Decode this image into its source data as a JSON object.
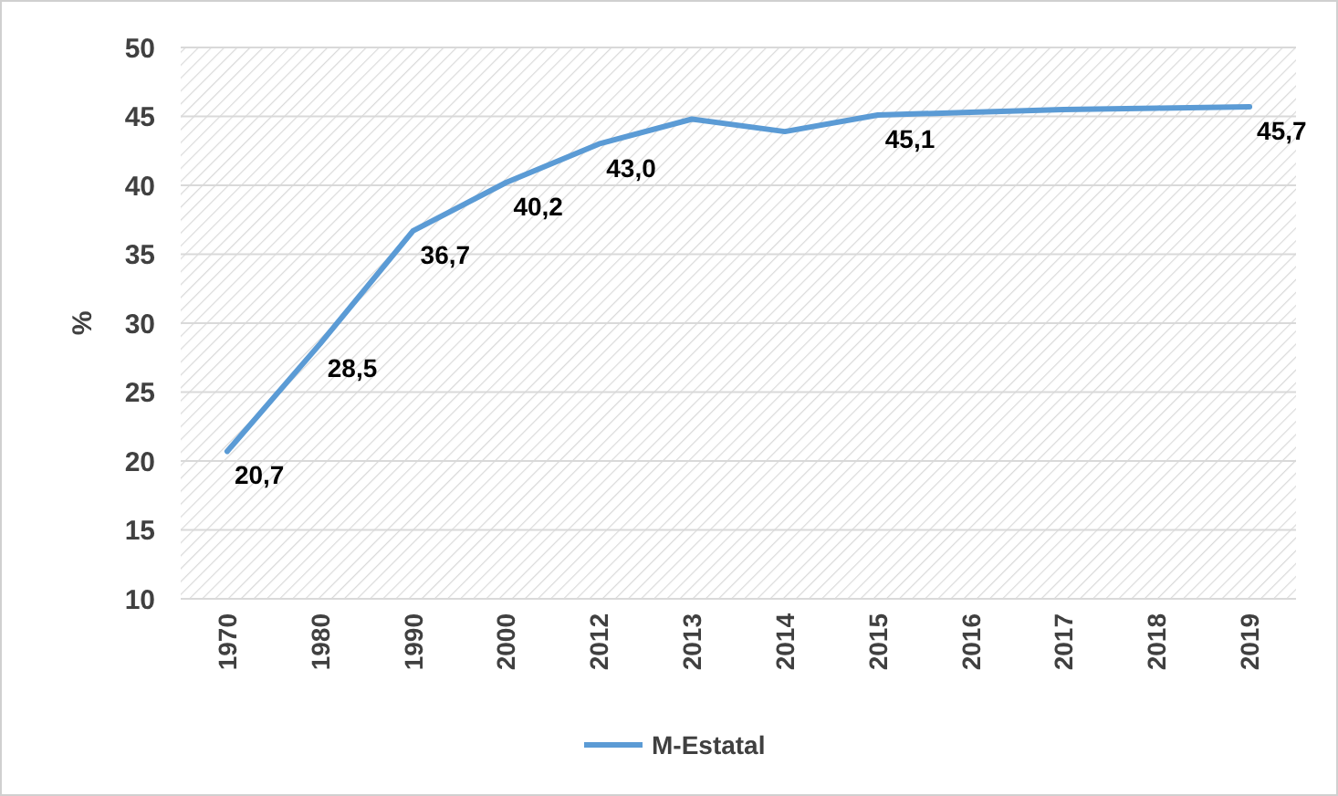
{
  "chart_data": {
    "type": "line",
    "ylabel": "%",
    "categories": [
      "1970",
      "1980",
      "1990",
      "2000",
      "2012",
      "2013",
      "2014",
      "2015",
      "2016",
      "2017",
      "2018",
      "2019"
    ],
    "series": [
      {
        "name": "M-Estatal",
        "color": "#5b9bd5",
        "values": [
          20.7,
          28.5,
          36.7,
          40.2,
          43.0,
          44.8,
          43.9,
          45.1,
          45.3,
          45.5,
          45.6,
          45.7
        ],
        "value_labels": [
          "20,7",
          "28,5",
          "36,7",
          "40,2",
          "43,0",
          null,
          null,
          "45,1",
          null,
          null,
          null,
          "45,7"
        ]
      }
    ],
    "ylim": [
      10,
      50
    ],
    "yticks": [
      10,
      15,
      20,
      25,
      30,
      35,
      40,
      45,
      50
    ],
    "grid": "y",
    "legend": "bottom",
    "marker": "none",
    "line_style": "solid"
  }
}
